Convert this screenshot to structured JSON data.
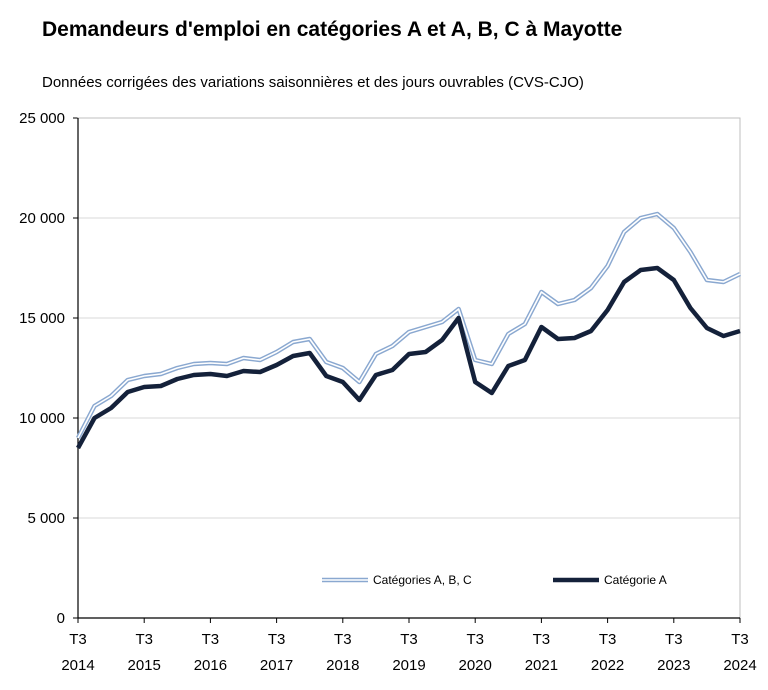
{
  "title": "Demandeurs d'emploi en catégories A et A, B, C à Mayotte",
  "subtitle": "Données corrigées des variations saisonnières et des jours ouvrables (CVS-CJO)",
  "chart_data": {
    "type": "line",
    "title": "Demandeurs d'emploi en catégories A et A, B, C à Mayotte",
    "subtitle": "Données corrigées des variations saisonnières et des jours ouvrables (CVS-CJO)",
    "xlabel": "",
    "ylabel": "",
    "ylim": [
      0,
      25000
    ],
    "yticks": [
      0,
      5000,
      10000,
      15000,
      20000,
      25000
    ],
    "ytick_labels": [
      "0",
      "5 000",
      "10 000",
      "15 000",
      "20 000",
      "25 000"
    ],
    "x_tick_labels": [
      {
        "quarter": "T3",
        "year": "2014"
      },
      {
        "quarter": "T3",
        "year": "2015"
      },
      {
        "quarter": "T3",
        "year": "2016"
      },
      {
        "quarter": "T3",
        "year": "2017"
      },
      {
        "quarter": "T3",
        "year": "2018"
      },
      {
        "quarter": "T3",
        "year": "2019"
      },
      {
        "quarter": "T3",
        "year": "2020"
      },
      {
        "quarter": "T3",
        "year": "2021"
      },
      {
        "quarter": "T3",
        "year": "2022"
      },
      {
        "quarter": "T3",
        "year": "2023"
      },
      {
        "quarter": "T3",
        "year": "2024"
      }
    ],
    "grid": true,
    "legend_position": "bottom",
    "colors": {
      "abc": "#8aa8d0",
      "a": "#14213a"
    },
    "series": [
      {
        "name": "Catégories A, B, C",
        "values": [
          9000,
          10600,
          11100,
          11900,
          12100,
          12200,
          12500,
          12700,
          12750,
          12700,
          13000,
          12900,
          13300,
          13800,
          13950,
          12800,
          12500,
          11800,
          13200,
          13600,
          14300,
          14550,
          14800,
          15450,
          12900,
          12700,
          14200,
          14700,
          16300,
          15700,
          15900,
          16500,
          17600,
          19300,
          20000,
          20200,
          19500,
          18300,
          16900,
          16800,
          17200
        ]
      },
      {
        "name": "Catégorie A",
        "values": [
          8500,
          10000,
          10500,
          11300,
          11550,
          11600,
          11950,
          12150,
          12200,
          12100,
          12350,
          12300,
          12650,
          13100,
          13250,
          12100,
          11800,
          10900,
          12150,
          12400,
          13200,
          13300,
          13900,
          15000,
          11800,
          11250,
          12600,
          12900,
          14550,
          13950,
          14000,
          14350,
          15400,
          16800,
          17400,
          17500,
          16900,
          15500,
          14500,
          14100,
          14350
        ]
      }
    ]
  }
}
